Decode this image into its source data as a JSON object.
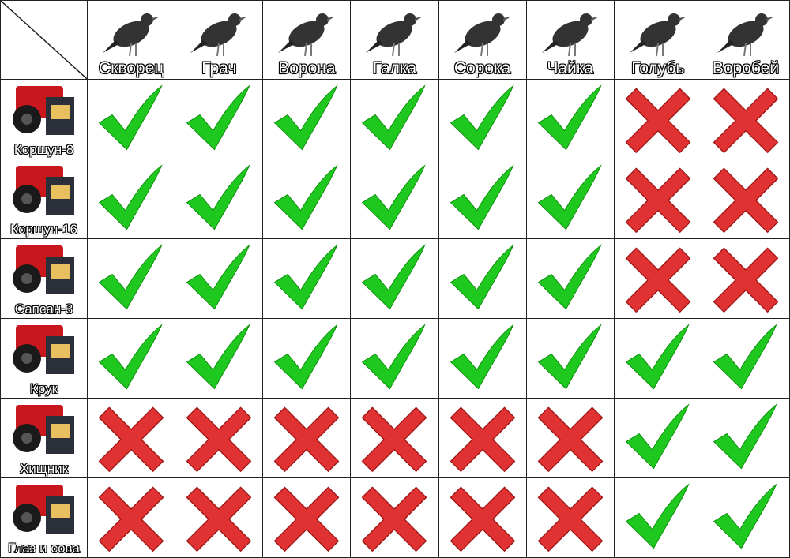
{
  "birds": [
    "Скворец",
    "Грач",
    "Ворона",
    "Галка",
    "Сорока",
    "Чайка",
    "Голубь",
    "Воробей"
  ],
  "devices": [
    {
      "name": "Коршун-8",
      "effective": [
        true,
        true,
        true,
        true,
        true,
        true,
        false,
        false
      ]
    },
    {
      "name": "Коршун-16",
      "effective": [
        true,
        true,
        true,
        true,
        true,
        true,
        false,
        false
      ]
    },
    {
      "name": "Сапсан-3",
      "effective": [
        true,
        true,
        true,
        true,
        true,
        true,
        false,
        false
      ]
    },
    {
      "name": "Крук",
      "effective": [
        true,
        true,
        true,
        true,
        true,
        true,
        true,
        true
      ]
    },
    {
      "name": "Хищник",
      "effective": [
        false,
        false,
        false,
        false,
        false,
        false,
        true,
        true
      ]
    },
    {
      "name": "Глаз и сова",
      "effective": [
        false,
        false,
        false,
        false,
        false,
        false,
        true,
        true
      ]
    }
  ],
  "colors": {
    "check": "#1ec81e",
    "cross": "#e03232"
  },
  "icons": {
    "yes": "check-icon",
    "no": "cross-icon"
  }
}
